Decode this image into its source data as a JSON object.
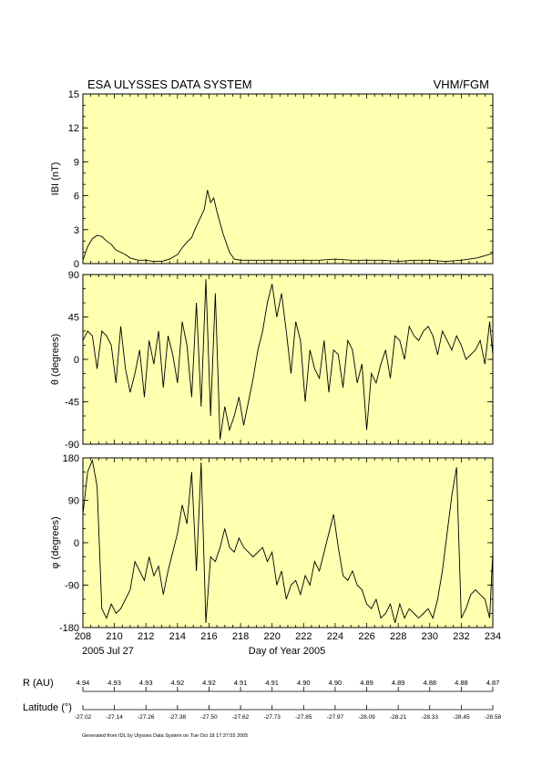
{
  "header": {
    "title": "ESA ULYSSES DATA SYSTEM",
    "instrument": "VHM/FGM"
  },
  "footer": {
    "generated": "Generated from IDL by Ulysses Data System on Tue Oct 18 17:37:55 2005"
  },
  "colors": {
    "panel_bg": "#FFFFB0",
    "trace": "#000000"
  },
  "chart_data": [
    {
      "type": "line",
      "ylabel": "IBI (nT)",
      "ylim": [
        0,
        15
      ],
      "yticks": [
        0,
        3,
        6,
        9,
        12,
        15
      ],
      "xlim": [
        208,
        234
      ],
      "x": [
        208.0,
        208.3,
        208.6,
        208.9,
        209.2,
        209.5,
        209.8,
        210.1,
        210.4,
        210.7,
        211.0,
        211.5,
        212.0,
        212.5,
        213.0,
        213.5,
        214.0,
        214.3,
        214.6,
        214.9,
        215.1,
        215.3,
        215.5,
        215.7,
        215.9,
        216.1,
        216.3,
        216.5,
        216.7,
        216.9,
        217.1,
        217.3,
        217.6,
        218.0,
        219.0,
        220.0,
        221.0,
        222.0,
        223.0,
        224.0,
        225.0,
        226.0,
        227.0,
        228.0,
        229.0,
        230.0,
        231.0,
        232.0,
        232.5,
        233.0,
        233.5,
        234.0
      ],
      "values": [
        0.3,
        1.5,
        2.2,
        2.5,
        2.4,
        2.0,
        1.7,
        1.2,
        1.0,
        0.8,
        0.5,
        0.3,
        0.3,
        0.2,
        0.2,
        0.4,
        0.8,
        1.4,
        1.9,
        2.3,
        3.0,
        3.6,
        4.2,
        4.8,
        6.5,
        5.4,
        5.8,
        4.6,
        3.6,
        2.6,
        1.8,
        1.0,
        0.4,
        0.3,
        0.3,
        0.3,
        0.3,
        0.3,
        0.3,
        0.4,
        0.3,
        0.3,
        0.3,
        0.2,
        0.3,
        0.3,
        0.2,
        0.3,
        0.4,
        0.5,
        0.7,
        0.9
      ]
    },
    {
      "type": "line",
      "ylabel": "θ (degrees)",
      "ylim": [
        -90,
        90
      ],
      "yticks": [
        -90,
        -45,
        0,
        45,
        90
      ],
      "xlim": [
        208,
        234
      ],
      "x": [
        208.0,
        208.3,
        208.6,
        208.9,
        209.2,
        209.5,
        209.8,
        210.1,
        210.4,
        210.7,
        211.0,
        211.3,
        211.6,
        211.9,
        212.2,
        212.5,
        212.8,
        213.1,
        213.4,
        213.7,
        214.0,
        214.3,
        214.6,
        214.9,
        215.2,
        215.5,
        215.8,
        216.1,
        216.4,
        216.7,
        217.0,
        217.3,
        217.6,
        217.9,
        218.2,
        218.5,
        218.8,
        219.1,
        219.4,
        219.7,
        220.0,
        220.3,
        220.6,
        220.9,
        221.2,
        221.5,
        221.8,
        222.1,
        222.4,
        222.7,
        223.0,
        223.3,
        223.6,
        223.9,
        224.2,
        224.5,
        224.8,
        225.1,
        225.4,
        225.7,
        226.0,
        226.3,
        226.6,
        226.9,
        227.2,
        227.5,
        227.8,
        228.1,
        228.4,
        228.7,
        229.0,
        229.3,
        229.6,
        229.9,
        230.2,
        230.5,
        230.8,
        231.1,
        231.4,
        231.7,
        232.0,
        232.3,
        232.6,
        232.9,
        233.2,
        233.5,
        233.8,
        234.0
      ],
      "values": [
        20,
        30,
        25,
        -10,
        30,
        25,
        15,
        -25,
        35,
        -10,
        -35,
        -15,
        10,
        -40,
        20,
        -5,
        30,
        -30,
        25,
        5,
        -25,
        40,
        15,
        -40,
        60,
        -50,
        85,
        -60,
        70,
        -85,
        -50,
        -75,
        -60,
        -40,
        -70,
        -45,
        -20,
        10,
        30,
        60,
        80,
        45,
        70,
        30,
        -15,
        40,
        20,
        -45,
        10,
        -10,
        -20,
        20,
        -35,
        10,
        5,
        -30,
        20,
        10,
        -25,
        -5,
        -75,
        -15,
        -25,
        -5,
        10,
        -20,
        25,
        20,
        0,
        35,
        25,
        20,
        30,
        35,
        25,
        5,
        30,
        20,
        10,
        25,
        15,
        0,
        5,
        10,
        20,
        -5,
        40,
        5
      ]
    },
    {
      "type": "line",
      "ylabel": "φ (degrees)",
      "ylim": [
        -180,
        180
      ],
      "yticks": [
        -180,
        -90,
        0,
        90,
        180
      ],
      "xlim": [
        208,
        234
      ],
      "x": [
        208.0,
        208.3,
        208.6,
        208.9,
        209.2,
        209.5,
        209.8,
        210.1,
        210.4,
        210.7,
        211.0,
        211.3,
        211.6,
        211.9,
        212.2,
        212.5,
        212.8,
        213.1,
        213.4,
        213.7,
        214.0,
        214.3,
        214.6,
        214.9,
        215.2,
        215.5,
        215.8,
        216.1,
        216.4,
        216.7,
        217.0,
        217.3,
        217.6,
        217.9,
        218.2,
        218.5,
        218.8,
        219.1,
        219.4,
        219.7,
        220.0,
        220.3,
        220.6,
        220.9,
        221.2,
        221.5,
        221.8,
        222.1,
        222.4,
        222.7,
        223.0,
        223.3,
        223.6,
        223.9,
        224.2,
        224.5,
        224.8,
        225.1,
        225.4,
        225.7,
        226.0,
        226.3,
        226.6,
        226.9,
        227.2,
        227.5,
        227.8,
        228.1,
        228.4,
        228.7,
        229.0,
        229.3,
        229.6,
        229.9,
        230.2,
        230.5,
        230.8,
        231.1,
        231.4,
        231.7,
        232.0,
        232.3,
        232.6,
        232.9,
        233.2,
        233.5,
        233.8,
        234.0
      ],
      "values": [
        60,
        150,
        175,
        120,
        -140,
        -160,
        -130,
        -150,
        -140,
        -120,
        -100,
        -40,
        -60,
        -80,
        -30,
        -70,
        -50,
        -110,
        -60,
        -20,
        20,
        80,
        40,
        150,
        -60,
        170,
        -170,
        -30,
        -40,
        -10,
        30,
        -10,
        -20,
        10,
        -10,
        -20,
        -30,
        -20,
        -10,
        -40,
        -20,
        -90,
        -60,
        -120,
        -90,
        -80,
        -110,
        -70,
        -90,
        -40,
        -60,
        -20,
        20,
        60,
        -10,
        -70,
        -80,
        -60,
        -90,
        -100,
        -130,
        -140,
        -120,
        -160,
        -150,
        -130,
        -170,
        -130,
        -160,
        -140,
        -150,
        -160,
        -150,
        -140,
        -160,
        -120,
        -60,
        20,
        100,
        160,
        -160,
        -140,
        -110,
        -100,
        -110,
        -120,
        -160,
        -20
      ]
    }
  ],
  "xaxis": {
    "ticks": [
      208,
      210,
      212,
      214,
      216,
      218,
      220,
      222,
      224,
      226,
      228,
      230,
      232,
      234
    ],
    "date_label": "2005 Jul 27",
    "title": "Day of Year 2005"
  },
  "ephemeris": {
    "r_label": "R (AU)",
    "r_values": [
      "4.94",
      "4.93",
      "4.93",
      "4.92",
      "4.92",
      "4.91",
      "4.91",
      "4.90",
      "4.90",
      "4.89",
      "4.89",
      "4.88",
      "4.88",
      "4.87"
    ],
    "lat_label": "Latitude (°)",
    "lat_values": [
      "-27.02",
      "-27.14",
      "-27.26",
      "-27.38",
      "-27.50",
      "-27.62",
      "-27.73",
      "-27.85",
      "-27.97",
      "-28.09",
      "-28.21",
      "-28.33",
      "-28.45",
      "-28.58"
    ]
  }
}
